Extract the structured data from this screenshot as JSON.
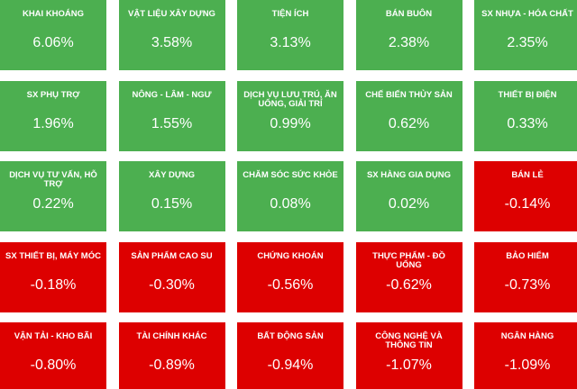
{
  "chart_data": {
    "type": "tiles",
    "categories": [
      "KHAI KHOÁNG",
      "VẬT LIỆU XÂY DỰNG",
      "TIỆN ÍCH",
      "BÁN BUÔN",
      "SX NHỰA - HÓA CHẤT",
      "SX PHỤ TRỢ",
      "NÔNG - LÂM - NGƯ",
      "DỊCH VỤ LƯU TRÚ, ĂN UỐNG, GIẢI TRÍ",
      "CHẾ BIẾN THỦY SẢN",
      "THIẾT BỊ ĐIỆN",
      "DỊCH VỤ TƯ VẤN, HỖ TRỢ",
      "XÂY DỰNG",
      "CHĂM SÓC SỨC KHỎE",
      "SX HÀNG GIA DỤNG",
      "BÁN LẺ",
      "SX THIẾT BỊ, MÁY MÓC",
      "SẢN PHẨM CAO SU",
      "CHỨNG KHOÁN",
      "THỰC PHẨM - ĐỒ UỐNG",
      "BẢO HIỂM",
      "VẬN TẢI - KHO BÃI",
      "TÀI CHÍNH KHÁC",
      "BẤT ĐỘNG SẢN",
      "CÔNG NGHỆ VÀ THÔNG TIN",
      "NGÂN HÀNG"
    ],
    "values": [
      6.06,
      3.58,
      3.13,
      2.38,
      2.35,
      1.96,
      1.55,
      0.99,
      0.62,
      0.33,
      0.22,
      0.15,
      0.08,
      0.02,
      -0.14,
      -0.18,
      -0.3,
      -0.56,
      -0.62,
      -0.73,
      -0.8,
      -0.89,
      -0.94,
      -1.07,
      -1.09
    ],
    "value_labels": [
      "6.06%",
      "3.58%",
      "3.13%",
      "2.38%",
      "2.35%",
      "1.96%",
      "1.55%",
      "0.99%",
      "0.62%",
      "0.33%",
      "0.22%",
      "0.15%",
      "0.08%",
      "0.02%",
      "-0.14%",
      "-0.18%",
      "-0.30%",
      "-0.56%",
      "-0.62%",
      "-0.73%",
      "-0.80%",
      "-0.89%",
      "-0.94%",
      "-1.07%",
      "-1.09%"
    ],
    "positive_color": "#4caf50",
    "negative_color": "#dd0000"
  }
}
